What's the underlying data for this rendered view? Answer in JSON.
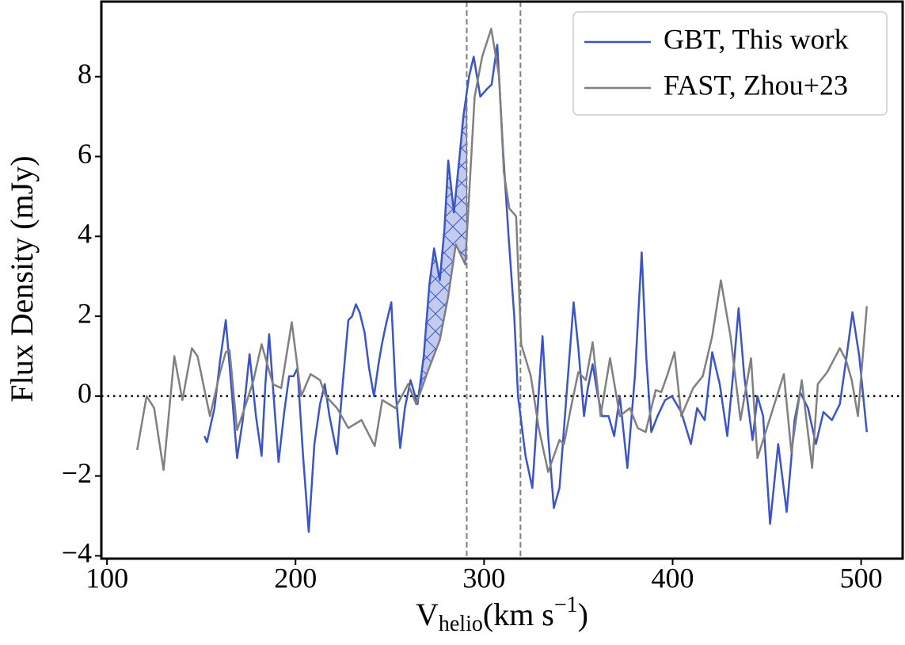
{
  "chart_data": {
    "type": "line",
    "ylabel": "Flux Density (mJy)",
    "xlabel": {
      "base": "V",
      "subscript": "helio",
      "unit": "(km s",
      "superscript": "−1",
      "close": ")"
    },
    "xlim": [
      97,
      522
    ],
    "ylim": [
      -4.07,
      9.88
    ],
    "xticks": [
      100,
      200,
      300,
      400,
      500
    ],
    "yticks": [
      {
        "value": -4,
        "label": "−4"
      },
      {
        "value": -2,
        "label": "−2"
      },
      0,
      2,
      4,
      6,
      8
    ],
    "grid": false,
    "legend": "upper right",
    "hline": 0,
    "vlines": [
      290.8,
      319.3
    ],
    "shade_range": [
      267,
      290.8
    ],
    "shade_color": "#3a55c8",
    "series": [
      {
        "name": "GBT, This work",
        "color": "#3a55c8",
        "x": [
          151.7,
          153,
          157,
          160,
          163,
          166,
          169,
          172,
          175.6,
          179,
          182,
          184,
          186,
          189,
          191,
          194,
          196.6,
          199,
          201,
          204,
          207,
          210,
          213,
          215.5,
          218,
          222,
          225,
          228,
          230,
          232,
          234,
          236.6,
          239,
          241.6,
          244,
          245.8,
          248,
          250.8,
          253,
          255.5,
          258,
          261,
          264.7,
          268,
          271,
          273.5,
          276.5,
          279,
          281,
          284,
          287,
          289,
          292,
          294.5,
          298,
          301.7,
          304,
          307,
          310,
          313,
          316,
          318,
          322,
          325.6,
          328,
          331,
          334,
          337,
          340,
          344,
          347.5,
          350,
          353,
          355,
          357.6,
          360,
          362.6,
          366,
          369,
          372,
          376,
          380,
          383.6,
          386,
          388.7,
          392,
          396,
          399.6,
          404.6,
          409.7,
          413,
          417,
          421,
          425,
          429,
          432,
          435,
          438,
          442.4,
          445,
          448,
          451.7,
          456,
          460.5,
          464.7,
          467.6,
          471.8,
          476,
          480,
          484.5,
          488.7,
          492,
          495.4,
          499,
          503
        ],
        "values": [
          -1.0,
          -1.15,
          -0.3,
          0.9,
          1.9,
          0.2,
          -1.55,
          -0.6,
          1.05,
          -0.5,
          -1.5,
          0.3,
          1.55,
          -0.4,
          -1.65,
          -0.4,
          0.5,
          0.5,
          0.7,
          -1.5,
          -3.4,
          -1.2,
          -0.2,
          0.3,
          -0.5,
          -1.45,
          0.3,
          1.9,
          2.0,
          2.3,
          2.1,
          1.6,
          0.7,
          0.0,
          0.8,
          1.3,
          1.8,
          2.35,
          0.2,
          -1.3,
          -0.3,
          0.4,
          -0.2,
          1.0,
          2.8,
          3.7,
          2.9,
          4.2,
          5.9,
          4.6,
          6.0,
          7.0,
          8.0,
          8.5,
          7.5,
          7.7,
          7.8,
          8.8,
          6.2,
          4.0,
          2.0,
          0.0,
          -1.5,
          -2.3,
          -0.6,
          1.5,
          -1.0,
          -2.8,
          -2.3,
          0.2,
          2.35,
          1.2,
          -0.5,
          0.2,
          0.8,
          0.1,
          -0.5,
          -0.5,
          -1.0,
          0.0,
          -1.8,
          0.5,
          3.6,
          1.0,
          -0.9,
          -0.5,
          -0.1,
          0.0,
          -0.4,
          -1.2,
          -0.3,
          -0.6,
          1.1,
          0.3,
          -1.0,
          0.5,
          2.2,
          0.5,
          -1.1,
          0.0,
          -0.5,
          -3.2,
          -1.2,
          -2.9,
          -0.6,
          0.1,
          -0.3,
          -1.2,
          -0.4,
          -0.6,
          -0.2,
          0.9,
          2.1,
          1.0,
          -0.9
        ]
      },
      {
        "name": "FAST, Zhou+23",
        "color": "#808080",
        "x": [
          116,
          121,
          125,
          130,
          135.7,
          140,
          145,
          148,
          154.6,
          160,
          163,
          165,
          169,
          173,
          177.7,
          182,
          188,
          192.4,
          198,
          203,
          208,
          213,
          216,
          222,
          228,
          235,
          242,
          246,
          253,
          259.7,
          264,
          270,
          276.5,
          281,
          285,
          290,
          295,
          299,
          303.8,
          308,
          310.5,
          313.4,
          317,
          319.7,
          324.8,
          329,
          334,
          340,
          342.4,
          346,
          350,
          354,
          357.6,
          361.8,
          366.8,
          372,
          377.3,
          381.5,
          385.7,
          391,
          394,
          397,
          401,
          404.6,
          410.9,
          416,
          421,
          425.6,
          430.7,
          436,
          441.6,
          445,
          452,
          459,
          463,
          468.5,
          474,
          477,
          482,
          488.7,
          492,
          495,
          498.3,
          503
        ],
        "values": [
          -1.35,
          0.0,
          -0.3,
          -1.85,
          1.0,
          -0.1,
          1.2,
          1.0,
          -0.5,
          0.6,
          1.1,
          1.15,
          -0.85,
          -0.3,
          0.4,
          1.3,
          0.3,
          0.2,
          1.85,
          0.0,
          0.55,
          0.4,
          0.0,
          -0.3,
          -0.8,
          -0.6,
          -1.25,
          -0.1,
          -0.3,
          0.3,
          -0.2,
          0.6,
          1.4,
          2.5,
          3.8,
          3.3,
          7.5,
          8.5,
          9.2,
          8.0,
          5.6,
          4.7,
          4.5,
          1.3,
          0.5,
          -0.8,
          -1.9,
          -1.1,
          -1.2,
          -0.3,
          0.6,
          0.4,
          1.35,
          -0.5,
          0.95,
          -0.5,
          -0.3,
          -0.8,
          -0.9,
          0.15,
          0.1,
          0.5,
          1.1,
          -0.5,
          0.2,
          0.5,
          1.5,
          2.9,
          1.5,
          -0.6,
          0.95,
          -1.55,
          -0.5,
          0.55,
          -1.4,
          0.4,
          -1.8,
          0.3,
          0.6,
          1.2,
          0.9,
          0.4,
          -0.5,
          2.25
        ]
      }
    ]
  }
}
